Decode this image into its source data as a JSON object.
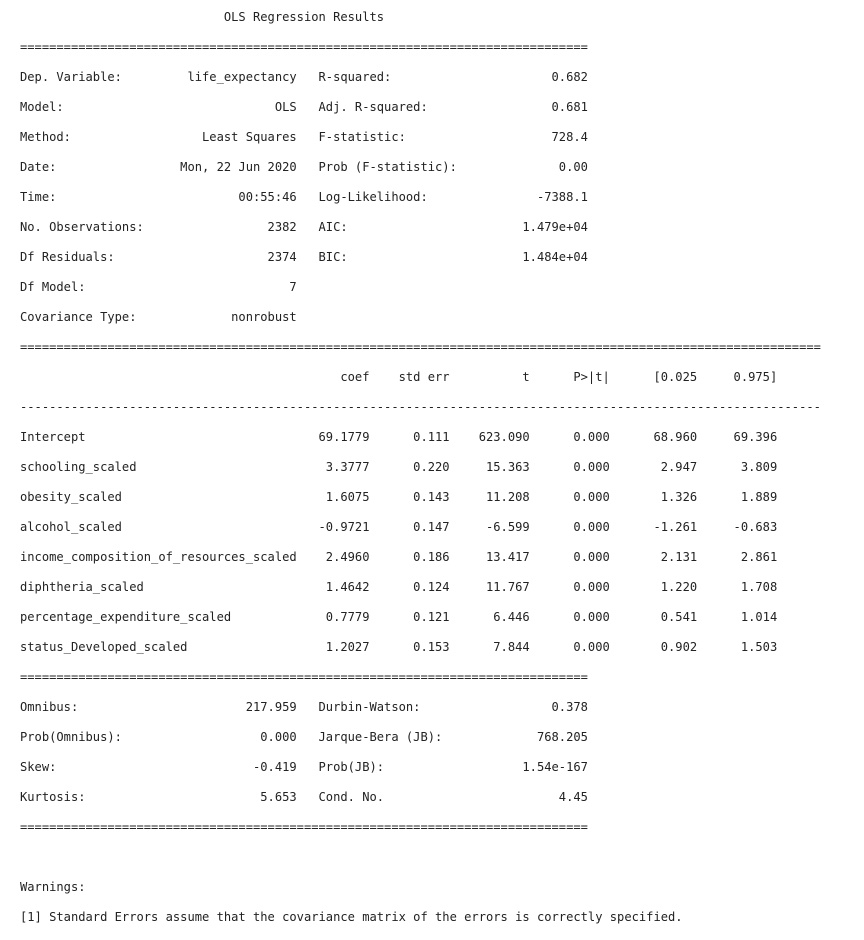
{
  "title": "OLS Regression Results",
  "summary_rows": [
    {
      "l_label": "Dep. Variable:",
      "l_value": "life_expectancy",
      "r_label": "R-squared:",
      "r_value": "0.682"
    },
    {
      "l_label": "Model:",
      "l_value": "OLS",
      "r_label": "Adj. R-squared:",
      "r_value": "0.681"
    },
    {
      "l_label": "Method:",
      "l_value": "Least Squares",
      "r_label": "F-statistic:",
      "r_value": "728.4"
    },
    {
      "l_label": "Date:",
      "l_value": "Mon, 22 Jun 2020",
      "r_label": "Prob (F-statistic):",
      "r_value": "0.00"
    },
    {
      "l_label": "Time:",
      "l_value": "00:55:46",
      "r_label": "Log-Likelihood:",
      "r_value": "-7388.1"
    },
    {
      "l_label": "No. Observations:",
      "l_value": "2382",
      "r_label": "AIC:",
      "r_value": "1.479e+04"
    },
    {
      "l_label": "Df Residuals:",
      "l_value": "2374",
      "r_label": "BIC:",
      "r_value": "1.484e+04"
    },
    {
      "l_label": "Df Model:",
      "l_value": "7",
      "r_label": "",
      "r_value": ""
    },
    {
      "l_label": "Covariance Type:",
      "l_value": "nonrobust",
      "r_label": "",
      "r_value": ""
    }
  ],
  "coef_header": [
    "",
    "coef",
    "std err",
    "t",
    "P>|t|",
    "[0.025",
    "0.975]"
  ],
  "coef_rows": [
    [
      "Intercept",
      "69.1779",
      "0.111",
      "623.090",
      "0.000",
      "68.960",
      "69.396"
    ],
    [
      "schooling_scaled",
      "3.3777",
      "0.220",
      "15.363",
      "0.000",
      "2.947",
      "3.809"
    ],
    [
      "obesity_scaled",
      "1.6075",
      "0.143",
      "11.208",
      "0.000",
      "1.326",
      "1.889"
    ],
    [
      "alcohol_scaled",
      "-0.9721",
      "0.147",
      "-6.599",
      "0.000",
      "-1.261",
      "-0.683"
    ],
    [
      "income_composition_of_resources_scaled",
      "2.4960",
      "0.186",
      "13.417",
      "0.000",
      "2.131",
      "2.861"
    ],
    [
      "diphtheria_scaled",
      "1.4642",
      "0.124",
      "11.767",
      "0.000",
      "1.220",
      "1.708"
    ],
    [
      "percentage_expenditure_scaled",
      "0.7779",
      "0.121",
      "6.446",
      "0.000",
      "0.541",
      "1.014"
    ],
    [
      "status_Developed_scaled",
      "1.2027",
      "0.153",
      "7.844",
      "0.000",
      "0.902",
      "1.503"
    ]
  ],
  "diag_rows": [
    {
      "l_label": "Omnibus:",
      "l_value": "217.959",
      "r_label": "Durbin-Watson:",
      "r_value": "0.378"
    },
    {
      "l_label": "Prob(Omnibus):",
      "l_value": "0.000",
      "r_label": "Jarque-Bera (JB):",
      "r_value": "768.205"
    },
    {
      "l_label": "Skew:",
      "l_value": "-0.419",
      "r_label": "Prob(JB):",
      "r_value": "1.54e-167"
    },
    {
      "l_label": "Kurtosis:",
      "l_value": "5.653",
      "r_label": "Cond. No.",
      "r_value": "4.45"
    }
  ],
  "warnings_title": "Warnings:",
  "warnings": [
    "[1] Standard Errors assume that the covariance matrix of the errors is correctly specified."
  ]
}
